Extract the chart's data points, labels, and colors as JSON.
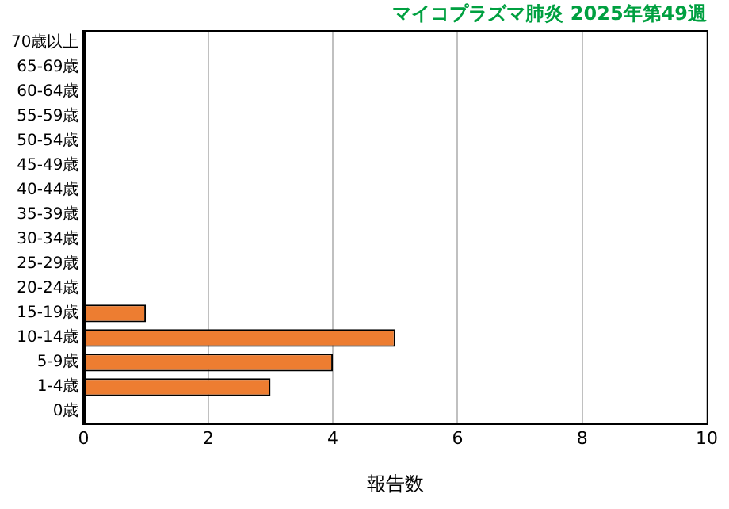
{
  "chart_data": {
    "type": "bar",
    "orientation": "horizontal",
    "title": "マイコプラズマ肺炎 2025年第49週",
    "xlabel": "報告数",
    "categories": [
      "70歳以上",
      "65-69歳",
      "60-64歳",
      "55-59歳",
      "50-54歳",
      "45-49歳",
      "40-44歳",
      "35-39歳",
      "30-34歳",
      "25-29歳",
      "20-24歳",
      "15-19歳",
      "10-14歳",
      "5-9歳",
      "1-4歳",
      "0歳"
    ],
    "values": [
      0,
      0,
      0,
      0,
      0,
      0,
      0,
      0,
      0,
      0,
      0,
      1,
      5,
      4,
      3,
      0
    ],
    "color": "#ed7d31",
    "xlim": [
      0,
      10
    ],
    "xticks": [
      0,
      2,
      4,
      6,
      8,
      10
    ],
    "grid": "x",
    "legend": false
  }
}
